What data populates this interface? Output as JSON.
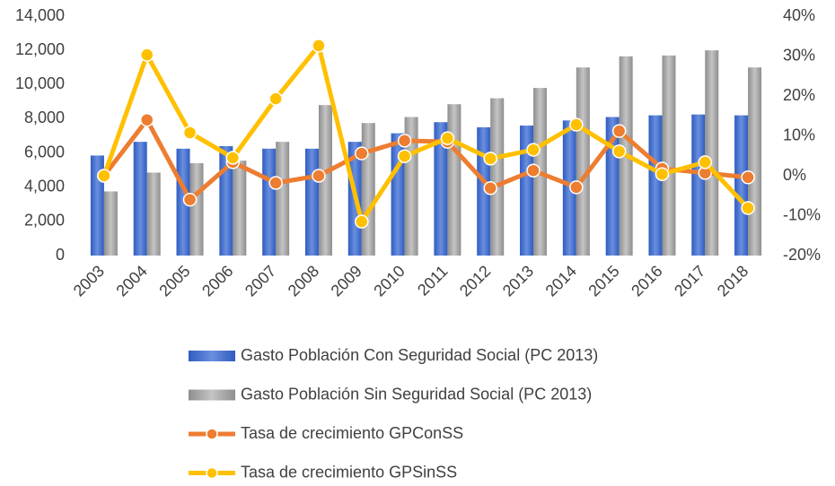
{
  "chart_data": {
    "type": "bar_line_combo",
    "categories": [
      "2003",
      "2004",
      "2005",
      "2006",
      "2007",
      "2008",
      "2009",
      "2010",
      "2011",
      "2012",
      "2013",
      "2014",
      "2015",
      "2016",
      "2017",
      "2018"
    ],
    "series": [
      {
        "name": "Gasto Población Con Seguridad Social (PC 2013)",
        "type": "bar",
        "color": "#4472c4",
        "values": [
          5850,
          6650,
          6250,
          6400,
          6250,
          6250,
          6650,
          7150,
          7800,
          7500,
          7600,
          7900,
          8100,
          8200,
          8250,
          8200
        ]
      },
      {
        "name": "Gasto Población Sin Seguridad Social (PC 2013)",
        "type": "bar",
        "color": "#a5a5a5",
        "values": [
          3750,
          4850,
          5400,
          5550,
          6650,
          8800,
          7750,
          8100,
          8850,
          9200,
          9800,
          11000,
          11650,
          11700,
          12000,
          11000
        ]
      },
      {
        "name": "Tasa de crecimiento GPConSS",
        "type": "line",
        "axis": "y2",
        "color": "#ed7d31",
        "values": [
          0,
          14,
          -6,
          3.4,
          -1.8,
          0,
          5.6,
          8.8,
          8.5,
          -3.1,
          1.3,
          -2.9,
          11.2,
          1.8,
          0.7,
          -0.4
        ]
      },
      {
        "name": "Tasa de crecimiento GPSinSS",
        "type": "line",
        "axis": "y2",
        "color": "#ffc000",
        "values": [
          0,
          30.3,
          10.8,
          4.5,
          19.3,
          32.6,
          -11.5,
          4.9,
          9.4,
          4.3,
          6.5,
          12.8,
          6.1,
          0.4,
          3.4,
          -8.1
        ]
      }
    ],
    "ylim": [
      0,
      14000
    ],
    "yticks": [
      0,
      {
        "value": 2000,
        "label": "2,000"
      },
      {
        "value": 4000,
        "label": "4,000"
      },
      {
        "value": 6000,
        "label": "6,000"
      },
      {
        "value": 8000,
        "label": "8,000"
      },
      {
        "value": 10000,
        "label": "10,000"
      },
      {
        "value": 12000,
        "label": "12,000"
      },
      {
        "value": 14000,
        "label": "14,000"
      }
    ],
    "y2lim": [
      -20,
      40
    ],
    "y2ticks": [
      {
        "value": -20,
        "label": "-20%"
      },
      {
        "value": -10,
        "label": "-10%"
      },
      {
        "value": 0,
        "label": "0%"
      },
      {
        "value": 10,
        "label": "10%"
      },
      {
        "value": 20,
        "label": "20%"
      },
      {
        "value": 30,
        "label": "30%"
      },
      {
        "value": 40,
        "label": "40%"
      }
    ],
    "grid": false,
    "legend": "bottom"
  }
}
